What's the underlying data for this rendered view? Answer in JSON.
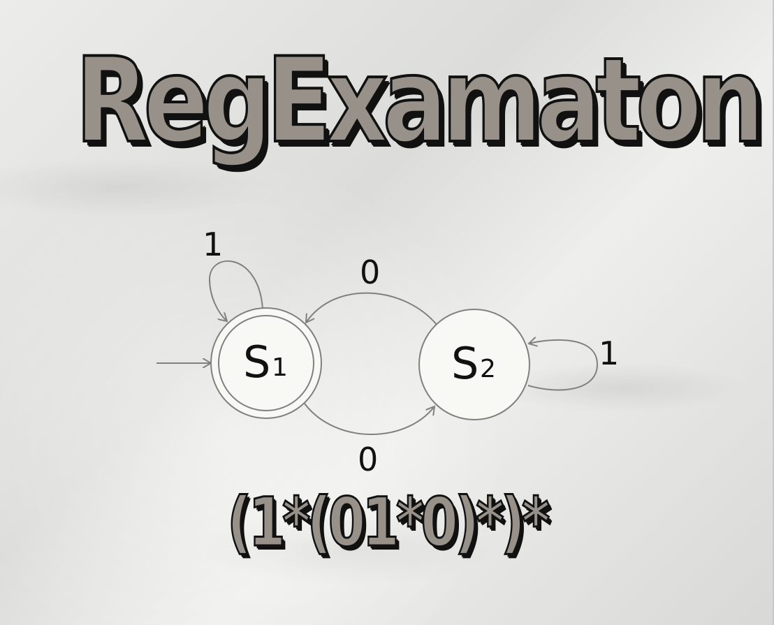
{
  "title": "RegExamaton",
  "regex": "(1*(01*0)*)*",
  "automaton": {
    "states": [
      {
        "id": "S1",
        "letter": "S",
        "subscript": "1",
        "accepting": true,
        "start": true
      },
      {
        "id": "S2",
        "letter": "S",
        "subscript": "2",
        "accepting": false,
        "start": false
      }
    ],
    "transitions": [
      {
        "from": "S1",
        "to": "S1",
        "label": "1"
      },
      {
        "from": "S2",
        "to": "S1",
        "label": "0"
      },
      {
        "from": "S1",
        "to": "S2",
        "label": "0"
      },
      {
        "from": "S2",
        "to": "S2",
        "label": "1"
      }
    ]
  },
  "colors": {
    "state_fill": "#f8f8f4",
    "edge_stroke": "#808080",
    "title_fill": "#979189",
    "outline": "#111111"
  }
}
